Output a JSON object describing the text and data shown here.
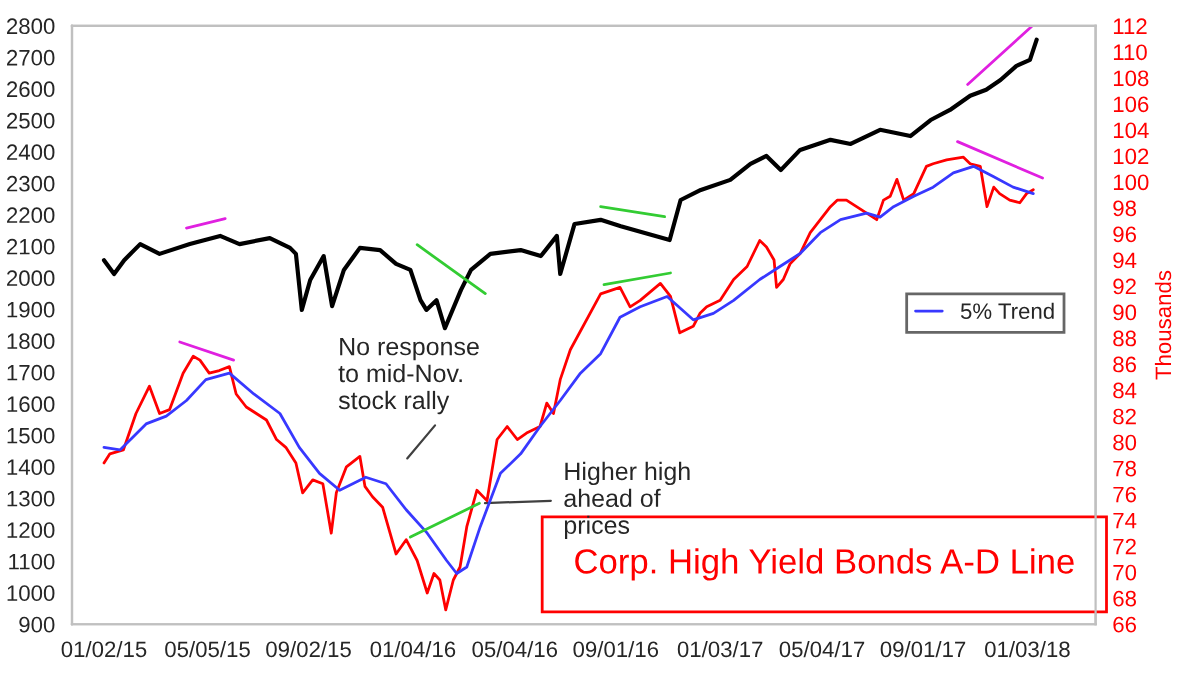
{
  "chart_data": {
    "type": "line",
    "title": "Corp. High Yield Bonds A-D Line",
    "y2label": "Thousands",
    "annotations": [
      "No response\nto mid-Nov.\nstock rally",
      {
        "text": "Higher high\nahead of\nprices",
        "x": "2016-03-23",
        "y": 1284
      }
    ],
    "xlim": [
      "2014-11-25",
      "2018-03-25"
    ],
    "xticks": [
      {
        "value": "2015-01-02",
        "label": "01/02/15"
      },
      {
        "value": "2015-05-05",
        "label": "05/05/15"
      },
      {
        "value": "2015-09-02",
        "label": "09/02/15"
      },
      {
        "value": "2016-01-04",
        "label": "01/04/16"
      },
      {
        "value": "2016-05-04",
        "label": "05/04/16"
      },
      {
        "value": "2016-09-01",
        "label": "09/01/16"
      },
      {
        "value": "2017-01-03",
        "label": "01/03/17"
      },
      {
        "value": "2017-05-04",
        "label": "05/04/17"
      },
      {
        "value": "2017-09-01",
        "label": "09/01/17"
      },
      {
        "value": "2018-01-03",
        "label": "01/03/18"
      }
    ],
    "ylim": [
      900,
      2800
    ],
    "yticks": [
      900,
      1000,
      1100,
      1200,
      1300,
      1400,
      1500,
      1600,
      1700,
      1800,
      1900,
      2000,
      2100,
      2200,
      2300,
      2400,
      2500,
      2600,
      2700,
      2800
    ],
    "y2lim": [
      66,
      112
    ],
    "y2ticks": [
      66,
      68,
      70,
      72,
      74,
      76,
      78,
      80,
      82,
      84,
      86,
      88,
      90,
      92,
      94,
      96,
      98,
      100,
      102,
      104,
      106,
      108,
      110,
      112
    ],
    "grid": false,
    "legend": "right",
    "series": [
      {
        "color": "#000000",
        "x": [
          "2015-01-02",
          "2015-01-14",
          "2015-01-26",
          "2015-02-14",
          "2015-03-09",
          "2015-04-14",
          "2015-05-20",
          "2015-06-12",
          "2015-07-18",
          "2015-08-11",
          "2015-08-18",
          "2015-08-25",
          "2015-09-04",
          "2015-09-20",
          "2015-09-30",
          "2015-10-14",
          "2015-11-02",
          "2015-11-26",
          "2015-12-15",
          "2016-01-01",
          "2016-01-13",
          "2016-01-20",
          "2016-02-01",
          "2016-02-11",
          "2016-03-01",
          "2016-03-13",
          "2016-04-05",
          "2016-05-11",
          "2016-06-04",
          "2016-06-23",
          "2016-06-27",
          "2016-07-14",
          "2016-08-14",
          "2016-09-07",
          "2016-11-04",
          "2016-11-17",
          "2016-12-11",
          "2017-01-15",
          "2017-02-08",
          "2017-02-27",
          "2017-03-16",
          "2017-04-08",
          "2017-05-14",
          "2017-06-07",
          "2017-07-12",
          "2017-08-17",
          "2017-09-10",
          "2017-10-03",
          "2017-10-27",
          "2017-11-15",
          "2017-12-02",
          "2017-12-21",
          "2018-01-06",
          "2018-01-14"
        ],
        "values": [
          2056,
          2012,
          2056,
          2107,
          2076,
          2107,
          2133,
          2107,
          2126,
          2095,
          2076,
          1898,
          1993,
          2069,
          1910,
          2025,
          2095,
          2088,
          2044,
          2025,
          1929,
          1898,
          1929,
          1840,
          1961,
          2025,
          2076,
          2088,
          2069,
          2133,
          2012,
          2171,
          2184,
          2164,
          2120,
          2247,
          2279,
          2311,
          2362,
          2387,
          2342,
          2406,
          2438,
          2425,
          2470,
          2450,
          2501,
          2533,
          2578,
          2597,
          2628,
          2673,
          2692,
          2756
        ]
      },
      {
        "color": "#ff0000",
        "axis": "y2",
        "x": [
          "2015-01-02",
          "2015-01-09",
          "2015-01-25",
          "2015-02-09",
          "2015-02-25",
          "2015-03-09",
          "2015-03-21",
          "2015-04-06",
          "2015-04-18",
          "2015-04-26",
          "2015-05-07",
          "2015-05-19",
          "2015-05-31",
          "2015-06-08",
          "2015-06-20",
          "2015-07-02",
          "2015-07-14",
          "2015-07-26",
          "2015-08-06",
          "2015-08-18",
          "2015-08-26",
          "2015-09-07",
          "2015-09-19",
          "2015-09-29",
          "2015-10-05",
          "2015-10-17",
          "2015-11-02",
          "2015-11-08",
          "2015-11-17",
          "2015-11-29",
          "2015-12-15",
          "2015-12-27",
          "2016-01-09",
          "2016-01-21",
          "2016-01-29",
          "2016-02-05",
          "2016-02-12",
          "2016-02-21",
          "2016-02-29",
          "2016-03-08",
          "2016-03-20",
          "2016-04-01",
          "2016-04-13",
          "2016-04-25",
          "2016-05-07",
          "2016-05-18",
          "2016-06-03",
          "2016-06-11",
          "2016-06-19",
          "2016-06-27",
          "2016-07-09",
          "2016-08-14",
          "2016-09-06",
          "2016-09-18",
          "2016-09-30",
          "2016-10-24",
          "2016-11-05",
          "2016-11-16",
          "2016-12-02",
          "2016-12-10",
          "2016-12-18",
          "2017-01-03",
          "2017-01-19",
          "2017-02-04",
          "2017-02-19",
          "2017-02-27",
          "2017-03-08",
          "2017-03-11",
          "2017-03-19",
          "2017-03-27",
          "2017-04-08",
          "2017-04-20",
          "2017-05-02",
          "2017-05-14",
          "2017-05-22",
          "2017-06-02",
          "2017-06-14",
          "2017-06-26",
          "2017-07-08",
          "2017-07-16",
          "2017-07-24",
          "2017-08-01",
          "2017-08-09",
          "2017-08-21",
          "2017-09-05",
          "2017-09-13",
          "2017-09-29",
          "2017-10-19",
          "2017-10-27",
          "2017-11-08",
          "2017-11-16",
          "2017-11-24",
          "2017-12-01",
          "2017-12-13",
          "2017-12-25",
          "2018-01-02",
          "2018-01-10"
        ],
        "values": [
          78.4,
          79.1,
          79.4,
          82.2,
          84.3,
          82.2,
          82.5,
          85.3,
          86.6,
          86.3,
          85.3,
          85.5,
          85.8,
          83.7,
          82.7,
          82.2,
          81.7,
          80.2,
          79.6,
          78.4,
          76.1,
          77.1,
          76.8,
          73.0,
          76.1,
          78.1,
          78.9,
          76.6,
          75.8,
          75.0,
          71.4,
          72.5,
          70.9,
          68.4,
          69.9,
          69.4,
          67.1,
          69.4,
          70.4,
          73.5,
          76.3,
          75.5,
          80.2,
          81.2,
          80.2,
          80.7,
          81.2,
          83.0,
          82.2,
          84.8,
          87.1,
          91.4,
          91.9,
          90.4,
          90.9,
          92.2,
          91.2,
          88.4,
          88.9,
          89.9,
          90.4,
          90.9,
          92.5,
          93.5,
          95.5,
          95.0,
          94.0,
          91.9,
          92.5,
          93.7,
          94.5,
          96.1,
          97.1,
          98.1,
          98.6,
          98.6,
          98.1,
          97.6,
          97.1,
          98.6,
          98.9,
          100.2,
          98.6,
          99.1,
          101.2,
          101.4,
          101.7,
          101.9,
          101.4,
          101.2,
          98.1,
          99.6,
          99.1,
          98.6,
          98.4,
          99.1,
          99.4
        ]
      },
      {
        "name": "5% Trend",
        "color": "#3838ff",
        "axis": "y2",
        "x": [
          "2015-01-02",
          "2015-01-21",
          "2015-02-21",
          "2015-03-17",
          "2015-04-10",
          "2015-05-03",
          "2015-05-31",
          "2015-06-29",
          "2015-07-30",
          "2015-08-22",
          "2015-09-15",
          "2015-10-09",
          "2015-11-09",
          "2015-12-03",
          "2015-12-27",
          "2016-01-21",
          "2016-02-13",
          "2016-02-25",
          "2016-03-08",
          "2016-03-24",
          "2016-04-17",
          "2016-05-11",
          "2016-06-03",
          "2016-06-27",
          "2016-07-21",
          "2016-08-14",
          "2016-09-06",
          "2016-09-30",
          "2016-11-01",
          "2016-12-02",
          "2016-12-26",
          "2017-01-19",
          "2017-02-19",
          "2017-03-15",
          "2017-04-08",
          "2017-05-02",
          "2017-05-26",
          "2017-06-26",
          "2017-07-12",
          "2017-07-28",
          "2017-08-21",
          "2017-09-13",
          "2017-10-07",
          "2017-10-31",
          "2017-11-24",
          "2017-12-17",
          "2018-01-10"
        ],
        "values": [
          79.6,
          79.4,
          81.4,
          82.0,
          83.2,
          84.8,
          85.3,
          83.7,
          82.2,
          79.6,
          77.6,
          76.3,
          77.3,
          76.8,
          74.8,
          73.0,
          70.9,
          69.9,
          70.4,
          73.5,
          77.6,
          79.1,
          81.2,
          83.2,
          85.3,
          86.8,
          89.6,
          90.4,
          91.2,
          89.4,
          89.9,
          90.9,
          92.5,
          93.5,
          94.5,
          96.1,
          97.1,
          97.6,
          97.3,
          98.1,
          98.9,
          99.6,
          100.7,
          101.2,
          100.4,
          99.6,
          99.1
        ]
      },
      {
        "color": "#e020e0",
        "x": [
          "2015-04-10",
          "2015-05-26"
        ],
        "values": [
          2158,
          2188
        ]
      },
      {
        "color": "#33cc33",
        "x": [
          "2016-01-09",
          "2016-03-30"
        ],
        "values": [
          2105,
          1950
        ]
      },
      {
        "color": "#33cc33",
        "x": [
          "2016-08-14",
          "2016-10-29"
        ],
        "values": [
          2226,
          2194
        ]
      },
      {
        "color": "#e020e0",
        "x": [
          "2017-10-24",
          "2018-01-08"
        ],
        "values": [
          2614,
          2798
        ]
      },
      {
        "color": "#e020e0",
        "axis": "y2",
        "x": [
          "2015-04-02",
          "2015-06-05"
        ],
        "values": [
          87.7,
          86.3
        ]
      },
      {
        "color": "#33cc33",
        "axis": "y2",
        "x": [
          "2016-01-01",
          "2016-03-23"
        ],
        "values": [
          72.7,
          75.3
        ]
      },
      {
        "color": "#33cc33",
        "axis": "y2",
        "x": [
          "2016-08-18",
          "2016-11-05"
        ],
        "values": [
          92.1,
          93.0
        ]
      },
      {
        "color": "#e020e0",
        "axis": "y2",
        "x": [
          "2017-10-12",
          "2018-01-21"
        ],
        "values": [
          103.1,
          100.3
        ]
      }
    ]
  }
}
